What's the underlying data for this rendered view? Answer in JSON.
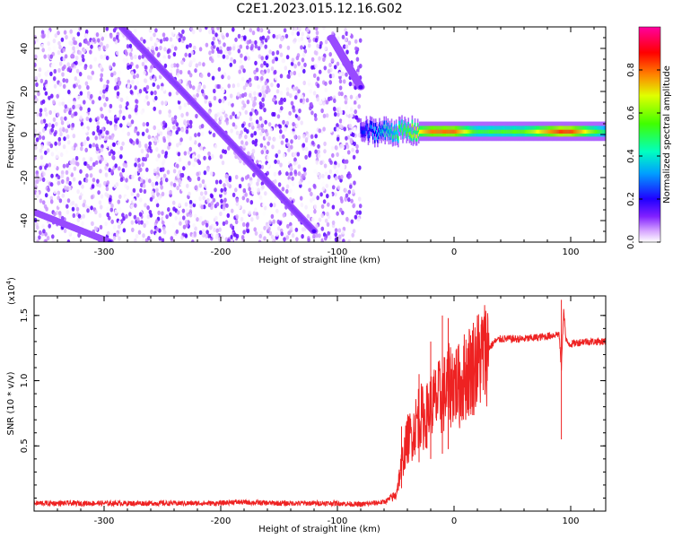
{
  "title": "C2E1.2023.015.12.16.G02",
  "chart_data": [
    {
      "type": "heatmap",
      "xlabel": "Height of straight line (km)",
      "ylabel": "Frequency (Hz)",
      "xlim": [
        -360,
        130
      ],
      "ylim": [
        -50,
        50
      ],
      "xticks": [
        -300,
        -200,
        -100,
        0,
        100
      ],
      "yticks": [
        -40,
        -20,
        0,
        20,
        40
      ],
      "colorbar": {
        "label": "Normalized spectral amplitude",
        "range": [
          0.0,
          1.0
        ],
        "ticks": [
          0.0,
          0.2,
          0.4,
          0.6,
          0.8
        ],
        "tick_labels": [
          "0.0",
          "0.2",
          "0.4",
          "0.6",
          "0.8"
        ],
        "colormap": [
          "#ffffff",
          "#c080ff",
          "#6000ff",
          "#0000ff",
          "#00ccff",
          "#00ff80",
          "#60ff00",
          "#ffff00",
          "#ff8000",
          "#ff0000",
          "#ff00a0"
        ]
      },
      "features": [
        {
          "name": "doppler-track-a",
          "x": [
            -285,
            -120
          ],
          "y": [
            50,
            -45
          ],
          "amplitude": 0.35
        },
        {
          "name": "doppler-track-b",
          "x": [
            -360,
            -295
          ],
          "y": [
            -36,
            -50
          ],
          "amplitude": 0.3
        },
        {
          "name": "doppler-track-c",
          "x": [
            -105,
            -80
          ],
          "y": [
            45,
            22
          ],
          "amplitude": 0.35
        },
        {
          "name": "carrier-line",
          "x": [
            -80,
            130
          ],
          "y": [
            1,
            1
          ],
          "amplitude_profile": [
            [
              -80,
              0.3
            ],
            [
              -60,
              0.45
            ],
            [
              -40,
              0.6
            ],
            [
              -20,
              0.8
            ],
            [
              0,
              0.82
            ],
            [
              20,
              0.55
            ],
            [
              60,
              0.6
            ],
            [
              90,
              0.85
            ],
            [
              100,
              0.85
            ],
            [
              130,
              0.5
            ]
          ]
        }
      ],
      "noise_region": {
        "x": [
          -360,
          -80
        ],
        "y": [
          -50,
          50
        ]
      }
    },
    {
      "type": "line",
      "xlabel": "Height of straight line (km)",
      "ylabel": "SNR (10 * v/v)",
      "y_multiplier": "(x10^4)",
      "xlim": [
        -360,
        130
      ],
      "ylim": [
        0,
        1.65
      ],
      "xticks": [
        -300,
        -200,
        -100,
        0,
        100
      ],
      "yticks": [
        0.5,
        1.0,
        1.5
      ],
      "ytick_labels": [
        "0.5",
        "1.0",
        "1.5"
      ],
      "series": [
        {
          "name": "SNR",
          "color": "#ee2222",
          "x": [
            -360,
            -300,
            -250,
            -200,
            -190,
            -150,
            -100,
            -80,
            -60,
            -50,
            -45,
            -40,
            -35,
            -30,
            -25,
            -20,
            -15,
            -10,
            -5,
            0,
            5,
            10,
            15,
            20,
            25,
            30,
            35,
            40,
            50,
            60,
            70,
            80,
            90,
            92,
            94,
            96,
            100,
            110,
            120,
            130
          ],
          "values": [
            0.06,
            0.06,
            0.06,
            0.06,
            0.07,
            0.06,
            0.06,
            0.05,
            0.07,
            0.12,
            0.35,
            0.55,
            0.6,
            0.75,
            0.7,
            0.8,
            0.85,
            0.88,
            0.95,
            1.0,
            0.95,
            1.05,
            1.1,
            1.15,
            1.2,
            1.25,
            1.3,
            1.32,
            1.32,
            1.32,
            1.33,
            1.34,
            1.36,
            1.1,
            1.55,
            1.3,
            1.28,
            1.3,
            1.3,
            1.3
          ]
        }
      ],
      "spikes": [
        {
          "x": -45,
          "top": 0.65
        },
        {
          "x": -30,
          "top": 1.05
        },
        {
          "x": -20,
          "top": 1.3
        },
        {
          "x": -10,
          "top": 1.5
        },
        {
          "x": -5,
          "top": 1.48
        },
        {
          "x": 92,
          "top": 1.62
        }
      ]
    }
  ]
}
